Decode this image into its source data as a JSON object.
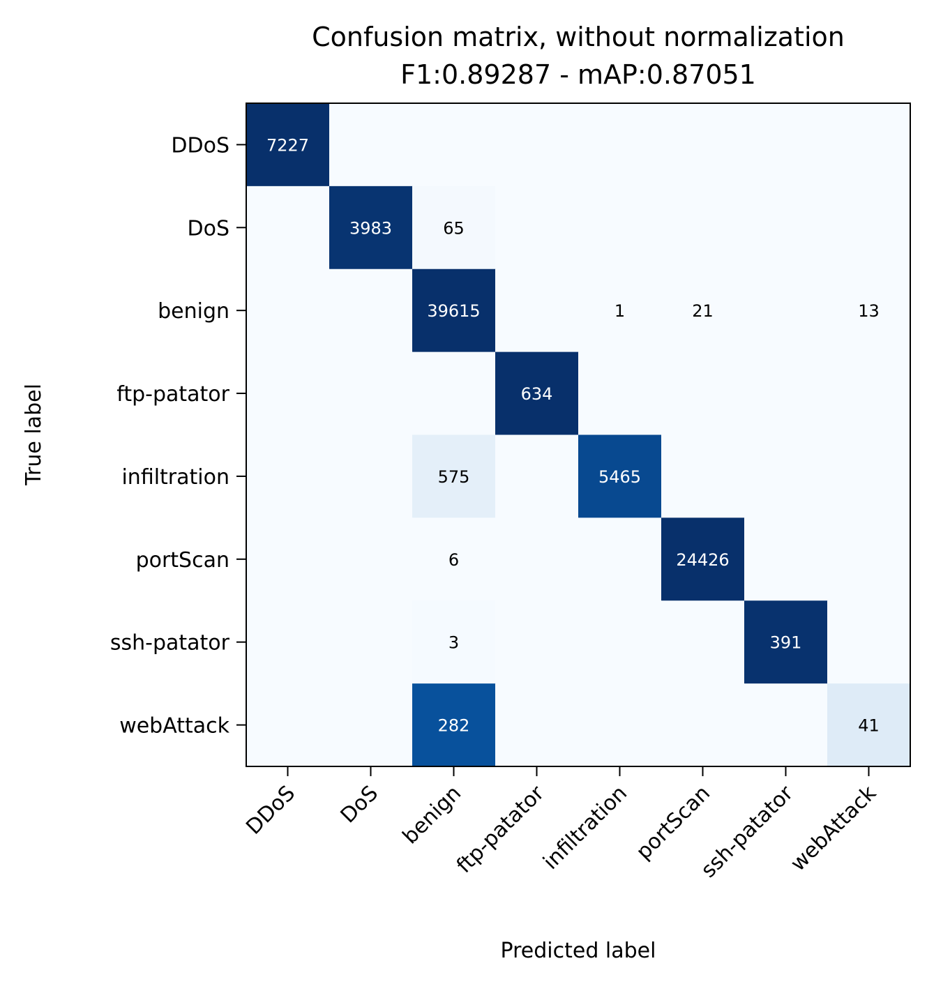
{
  "chart_data": {
    "type": "heatmap",
    "title": "Confusion matrix, without normalization",
    "subtitle": "F1:0.89287 - mAP:0.87051",
    "xlabel": "Predicted label",
    "ylabel": "True label",
    "colormap": "Blues",
    "row_labels": [
      "DDoS",
      "DoS",
      "benign",
      "ftp-patator",
      "infiltration",
      "portScan",
      "ssh-patator",
      "webAttack"
    ],
    "col_labels": [
      "DDoS",
      "DoS",
      "benign",
      "ftp-patator",
      "infiltration",
      "portScan",
      "ssh-patator",
      "webAttack"
    ],
    "values": [
      [
        7227,
        0,
        0,
        0,
        0,
        0,
        0,
        0
      ],
      [
        0,
        3983,
        65,
        0,
        0,
        0,
        0,
        0
      ],
      [
        0,
        0,
        39615,
        0,
        1,
        21,
        0,
        13
      ],
      [
        0,
        0,
        0,
        634,
        0,
        0,
        0,
        0
      ],
      [
        0,
        0,
        575,
        0,
        5465,
        0,
        0,
        0
      ],
      [
        0,
        0,
        6,
        0,
        0,
        24426,
        0,
        0
      ],
      [
        0,
        0,
        3,
        0,
        0,
        0,
        391,
        0
      ],
      [
        0,
        0,
        282,
        0,
        0,
        0,
        0,
        41
      ]
    ],
    "colors": {
      "min": "#f7fbff",
      "max": "#08306b",
      "text_dark": "#000000",
      "text_light": "#ffffff"
    }
  }
}
